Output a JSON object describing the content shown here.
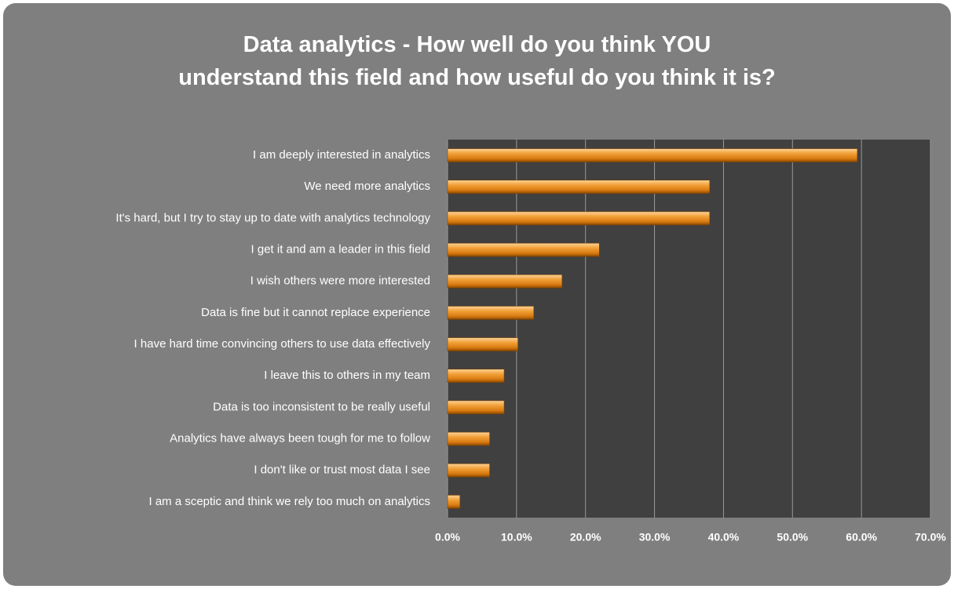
{
  "chart_data": {
    "type": "hbar",
    "title": "Data analytics - How well do you think YOU understand this field and how useful do you think it is?",
    "categories": [
      "I am deeply interested in analytics",
      "We need more analytics",
      "It's hard, but I try to stay up to date with analytics technology",
      "I get it and am a leader in this field",
      "I wish others were more interested",
      "Data is fine but it cannot replace experience",
      "I have hard time convincing  others to use data effectively",
      "I leave this to others in my team",
      "Data is too inconsistent to be really useful",
      "Analytics have always been tough for me to follow",
      "I don't like or trust most data I see",
      "I am a sceptic and think we rely too much on analytics"
    ],
    "values": [
      59.4,
      38.0,
      38.0,
      22.0,
      16.6,
      12.5,
      10.2,
      8.2,
      8.2,
      6.1,
      6.1,
      1.8
    ],
    "color": "#f0961e",
    "xlim": [
      0,
      70
    ],
    "xticks": [
      {
        "value": 0,
        "label": "0.0%"
      },
      {
        "value": 10,
        "label": "10.0%"
      },
      {
        "value": 20,
        "label": "20.0%"
      },
      {
        "value": 30,
        "label": "30.0%"
      },
      {
        "value": 40,
        "label": "40.0%"
      },
      {
        "value": 50,
        "label": "50.0%"
      },
      {
        "value": 60,
        "label": "60.0%"
      },
      {
        "value": 70,
        "label": "70.0%"
      }
    ],
    "grid": true
  }
}
